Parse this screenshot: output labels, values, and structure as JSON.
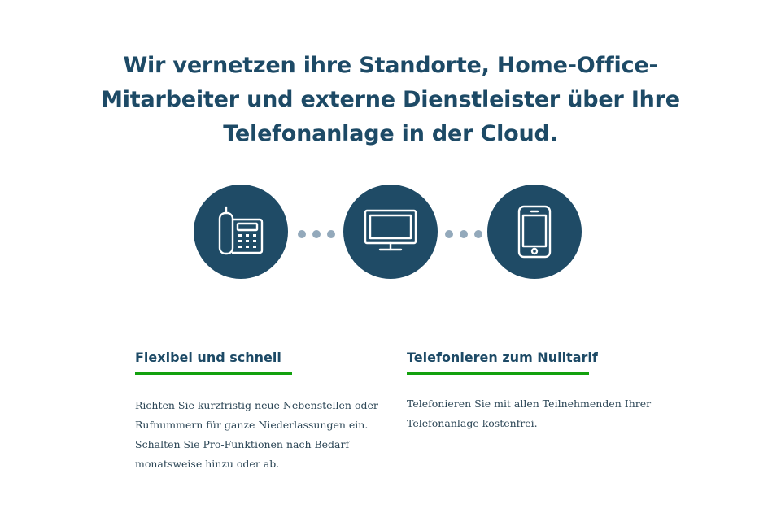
{
  "headline": {
    "line1": "Wir vernetzen ihre Standorte, Home-Office-",
    "line2": "Mitarbeiter und externe Dienstleister über Ihre",
    "line3": "Telefonanlage in der Cloud."
  },
  "devices": [
    {
      "icon": "desk-phone-icon"
    },
    {
      "icon": "monitor-icon"
    },
    {
      "icon": "smartphone-icon"
    }
  ],
  "colors": {
    "primary": "#1f4b66",
    "accent": "#13a10e",
    "dots": "#93a9bb",
    "text": "#2c4656"
  },
  "features": [
    {
      "title": "Flexibel und schnell",
      "lines": [
        "Richten Sie kurzfristig neue Nebenstellen oder",
        "Rufnummern für ganze Niederlassungen ein.",
        "Schalten Sie Pro-Funktionen nach Bedarf",
        "monatsweise hinzu oder ab."
      ]
    },
    {
      "title": "Telefonieren zum Nulltarif",
      "lines": [
        "Telefonieren Sie mit allen Teilnehmenden Ihrer",
        "Telefonanlage kostenfrei."
      ]
    }
  ]
}
